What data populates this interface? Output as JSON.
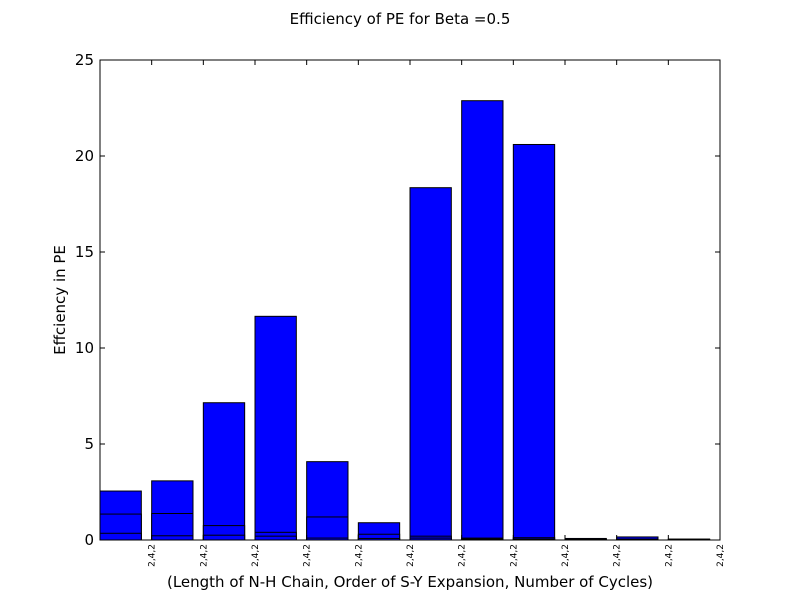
{
  "chart_data": {
    "type": "bar",
    "title": "Efficiency of PE for Beta =0.5",
    "xlabel": "(Length of N-H Chain, Order of S-Y Expansion, Number of Cycles)",
    "ylabel": "Effciency in PE",
    "ylim": [
      0,
      25
    ],
    "yticks": [
      0,
      5,
      10,
      15,
      20,
      25
    ],
    "categories": [
      "2,4,2",
      "2,4,2",
      "2,4,2",
      "2,4,2",
      "2,4,2",
      "2,4,2",
      "2,4,2",
      "2,4,2",
      "2,4,2",
      "2,4,2",
      "2,4,2",
      "2,4,2"
    ],
    "series": [
      {
        "values": [
          2.55,
          3.08,
          7.15,
          11.65,
          4.08,
          0.9,
          18.35,
          22.88,
          20.6,
          0.08,
          0.16,
          0.05
        ]
      },
      {
        "values": [
          1.35,
          1.38,
          0.75,
          0.4,
          1.2,
          0.3,
          0.2,
          0.1,
          0.12,
          0.03,
          0.05,
          0.02
        ]
      },
      {
        "values": [
          0.35,
          0.22,
          0.25,
          0.2,
          0.1,
          0.08,
          0.1,
          0.05,
          0.05,
          0.01,
          0.02,
          0.01
        ]
      }
    ],
    "bar_color": "#0000ff",
    "grid": false
  }
}
